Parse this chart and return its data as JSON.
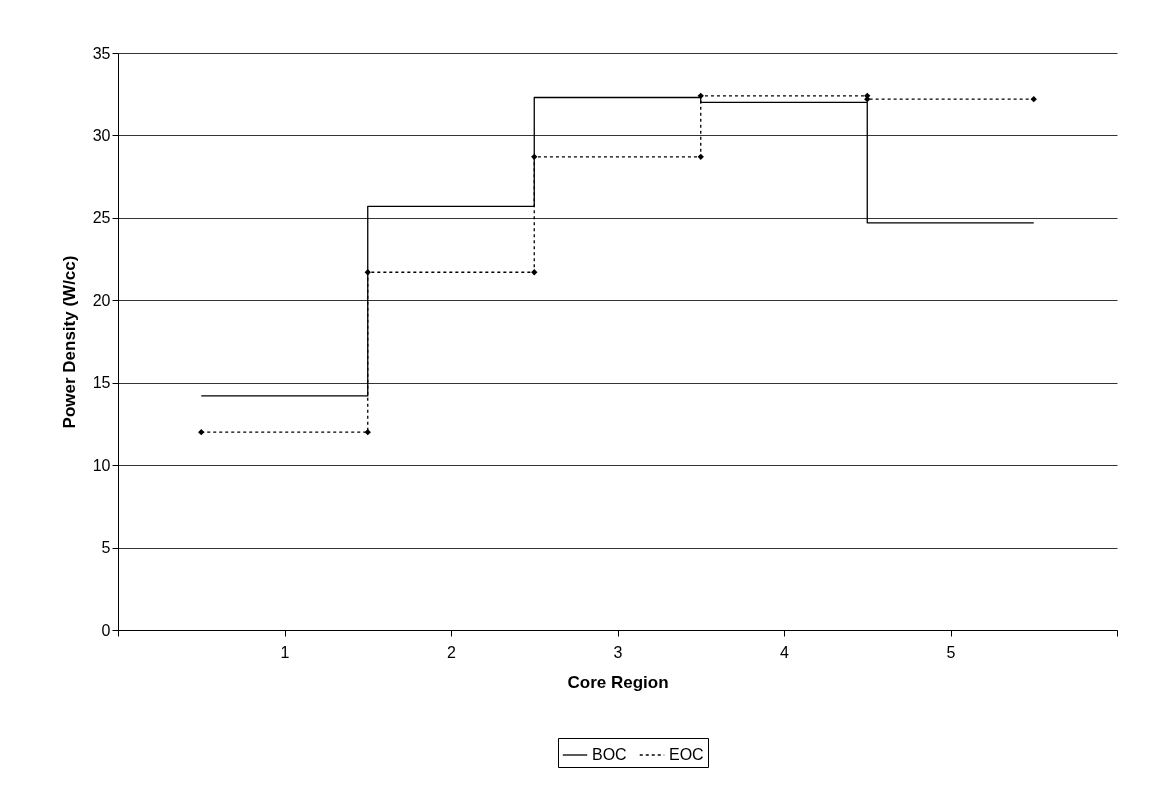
{
  "chart_data": {
    "type": "line",
    "xlabel": "Core Region",
    "ylabel": "Power Density (W/cc)",
    "xlim": [
      0,
      6
    ],
    "xticks": [
      {
        "value": 0,
        "label": null
      },
      1,
      2,
      3,
      4,
      5,
      {
        "value": 6,
        "label": null
      }
    ],
    "ylim": [
      0,
      35
    ],
    "yticks": [
      0,
      5,
      10,
      15,
      20,
      25,
      30,
      35
    ],
    "grid": "y",
    "legend": "bottom",
    "series": [
      {
        "name": "BOC",
        "color": "#000000",
        "line_style": "solid",
        "marker": "none",
        "x": [
          0.5,
          1.5,
          1.5,
          2.5,
          2.5,
          3.5,
          3.5,
          4.5,
          4.5,
          5.5
        ],
        "values": [
          14.2,
          14.2,
          25.7,
          25.7,
          32.3,
          32.3,
          32.0,
          32.0,
          24.7,
          24.7
        ]
      },
      {
        "name": "EOC",
        "color": "#000000",
        "line_style": "dotted",
        "marker": "diamond",
        "x": [
          0.5,
          1.5,
          1.5,
          2.5,
          2.5,
          3.5,
          3.5,
          4.5,
          4.5,
          5.5
        ],
        "values": [
          12.0,
          12.0,
          21.7,
          21.7,
          28.7,
          28.7,
          32.4,
          32.4,
          32.2,
          32.2
        ]
      }
    ]
  }
}
